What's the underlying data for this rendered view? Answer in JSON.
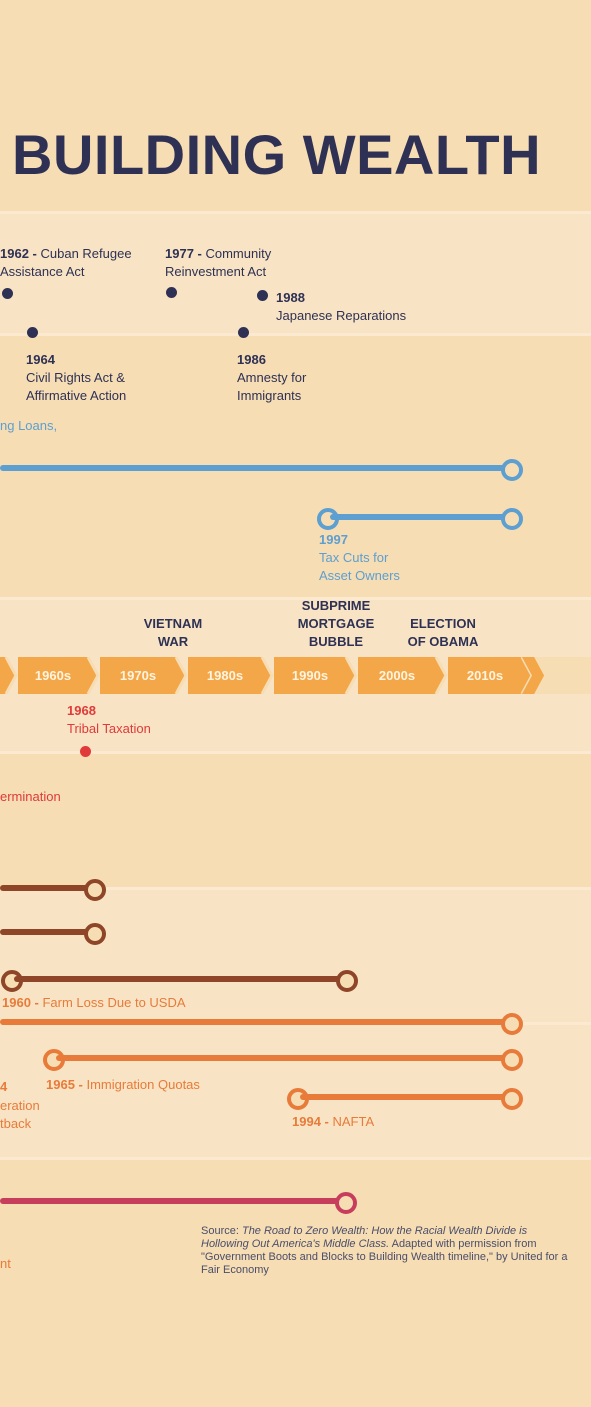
{
  "title": "BUILDING WEALTH",
  "navy_events": [
    {
      "year": "1962",
      "label": "Cuban Refugee",
      "label2": "Assistance Act"
    },
    {
      "year": "1977",
      "label": "Community",
      "label2": "Reinvestment Act"
    },
    {
      "year": "1988",
      "label": "",
      "label2": "Japanese Reparations"
    },
    {
      "year": "1964",
      "label": "Civil Rights Act &",
      "label2": "Affirmative Action"
    },
    {
      "year": "1986",
      "label": "Amnesty for",
      "label2": "Immigrants"
    }
  ],
  "blue_events": {
    "cut_label": "ng Loans,",
    "tax_year": "1997",
    "tax_label1": "Tax Cuts for",
    "tax_label2": "Asset Owners"
  },
  "eras": [
    {
      "line1": "VIETNAM",
      "line2": "WAR"
    },
    {
      "line1": "SUBPRIME",
      "line2": "MORTGAGE",
      "line3": "BUBBLE"
    },
    {
      "line1": "ELECTION",
      "line2": "OF OBAMA"
    }
  ],
  "decades": [
    "1960s",
    "1970s",
    "1980s",
    "1990s",
    "2000s",
    "2010s"
  ],
  "red_event": {
    "year": "1968",
    "label": "Tribal Taxation",
    "cut_label": "ermination"
  },
  "orange_events": [
    {
      "year": "1960",
      "label": "Farm Loss Due to USDA"
    },
    {
      "year": "1965",
      "label": "Immigration Quotas"
    },
    {
      "year": "1994",
      "label": "NAFTA"
    },
    {
      "year": "",
      "label": "4"
    },
    {
      "year": "",
      "label": "eration"
    },
    {
      "year": "",
      "label": "tback"
    }
  ],
  "pink_cut_label": "nt",
  "source": {
    "prefix": "Source: ",
    "italic": "The Road to Zero Wealth: How the Racial Wealth Divide is Hollowing Out America's Middle Class.",
    "rest": " Adapted with permission from \"Government Boots and Blocks to Building Wealth timeline,\" by United for a Fair Economy"
  },
  "colors": {
    "background": "#F6DDB4",
    "navy": "#2E3154",
    "blue": "#5D9FD0",
    "arrow": "#F4A748",
    "red": "#E03A3A",
    "brown": "#8E4528",
    "orange": "#E87B3A",
    "pink": "#C73E5D"
  }
}
